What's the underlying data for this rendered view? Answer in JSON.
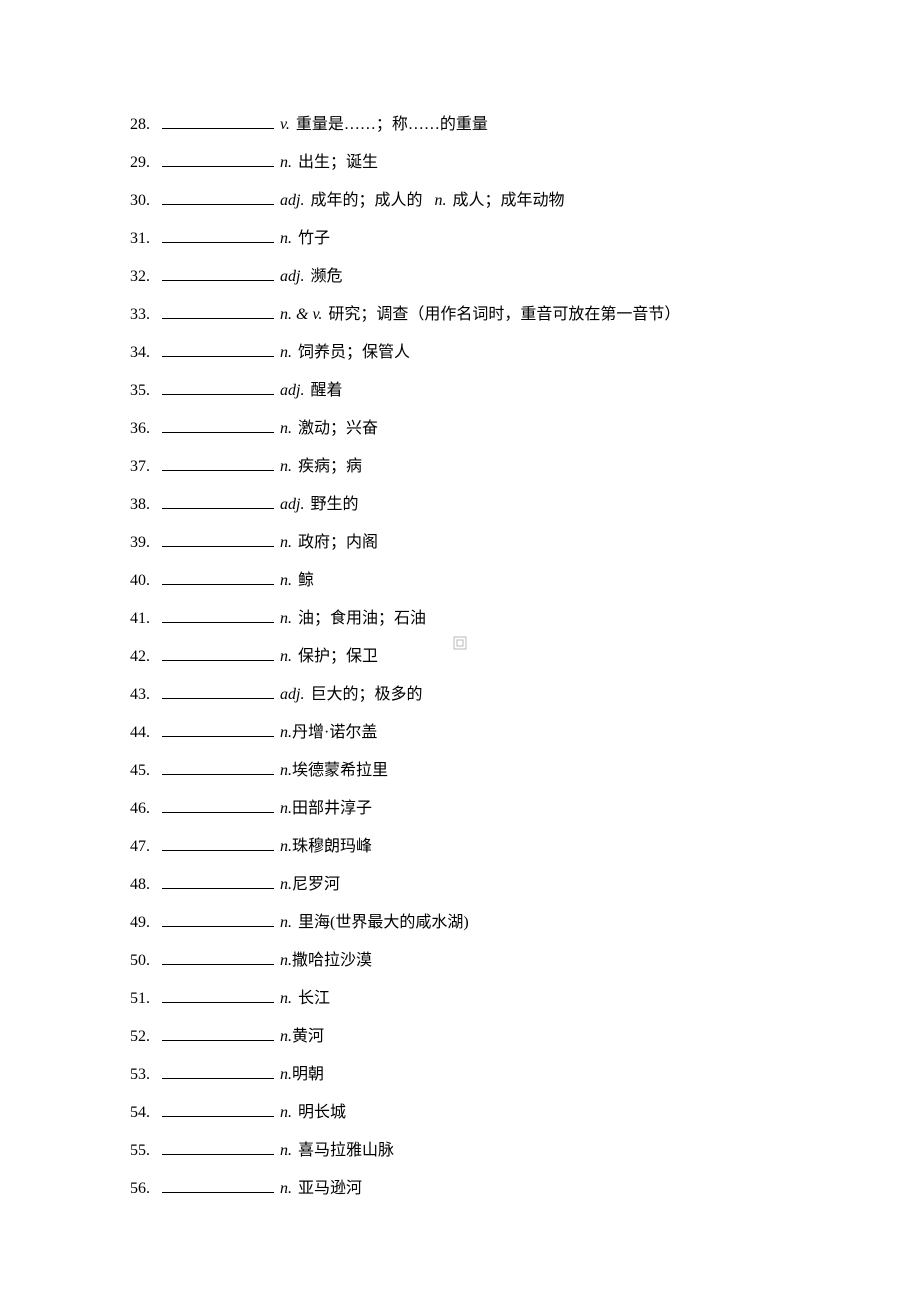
{
  "entries": [
    {
      "num": "28.",
      "defs": [
        {
          "pos": "v.",
          "text": "重量是……；称……的重量"
        }
      ]
    },
    {
      "num": "29.",
      "defs": [
        {
          "pos": "n.",
          "text": "出生；诞生"
        }
      ]
    },
    {
      "num": "30.",
      "defs": [
        {
          "pos": "adj.",
          "text": "成年的；成人的"
        },
        {
          "pos": "n.",
          "text": "成人；成年动物"
        }
      ]
    },
    {
      "num": "31.",
      "defs": [
        {
          "pos": "n.",
          "text": "竹子"
        }
      ]
    },
    {
      "num": "32.",
      "defs": [
        {
          "pos": "adj.",
          "text": "濒危"
        }
      ]
    },
    {
      "num": "33.",
      "defs": [
        {
          "pos": "n. & v.",
          "text": "  研究；调查（用作名词时，重音可放在第一音节）"
        }
      ]
    },
    {
      "num": "34.",
      "defs": [
        {
          "pos": "n.",
          "text": "饲养员；保管人"
        }
      ]
    },
    {
      "num": "35.",
      "defs": [
        {
          "pos": "adj.",
          "text": "醒着"
        }
      ]
    },
    {
      "num": "36.",
      "defs": [
        {
          "pos": "n.",
          "text": "激动；兴奋"
        }
      ]
    },
    {
      "num": "37.",
      "defs": [
        {
          "pos": "n.",
          "text": "疾病；病"
        }
      ]
    },
    {
      "num": "38.",
      "defs": [
        {
          "pos": "adj.",
          "text": "野生的"
        }
      ]
    },
    {
      "num": "39.",
      "defs": [
        {
          "pos": "n.",
          "text": "政府；内阁"
        }
      ]
    },
    {
      "num": "40.",
      "defs": [
        {
          "pos": "n.",
          "text": "鲸"
        }
      ]
    },
    {
      "num": "41.",
      "defs": [
        {
          "pos": "n.",
          "text": "油；食用油；石油"
        }
      ]
    },
    {
      "num": "42.",
      "defs": [
        {
          "pos": "n.",
          "text": "保护；保卫"
        }
      ]
    },
    {
      "num": "43.",
      "defs": [
        {
          "pos": "adj.",
          "text": "巨大的；极多的"
        }
      ]
    },
    {
      "num": "44.",
      "defs": [
        {
          "pos": "n.",
          "text": "丹增·诺尔盖",
          "tight": true
        }
      ]
    },
    {
      "num": "45.",
      "defs": [
        {
          "pos": "n.",
          "text": "埃德蒙希拉里",
          "tight": true
        }
      ]
    },
    {
      "num": "46.",
      "defs": [
        {
          "pos": "n.",
          "text": "田部井淳子",
          "tight": true
        }
      ]
    },
    {
      "num": "47.",
      "defs": [
        {
          "pos": "n.",
          "text": "珠穆朗玛峰",
          "tight": true
        }
      ]
    },
    {
      "num": "48.",
      "defs": [
        {
          "pos": "n.",
          "text": "尼罗河",
          "tight": true
        }
      ]
    },
    {
      "num": "49.",
      "defs": [
        {
          "pos": "n.",
          "text": "  里海(世界最大的咸水湖)"
        }
      ]
    },
    {
      "num": "50.",
      "defs": [
        {
          "pos": "n.",
          "text": "撒哈拉沙漠",
          "tight": true
        }
      ]
    },
    {
      "num": "51.",
      "defs": [
        {
          "pos": "n.",
          "text": "  长江"
        }
      ]
    },
    {
      "num": "52.",
      "defs": [
        {
          "pos": "n.",
          "text": "黄河",
          "tight": true
        }
      ]
    },
    {
      "num": "53.",
      "defs": [
        {
          "pos": "n.",
          "text": "明朝",
          "tight": true
        }
      ]
    },
    {
      "num": "54.",
      "defs": [
        {
          "pos": "n.",
          "text": "  明长城"
        }
      ]
    },
    {
      "num": "55.",
      "defs": [
        {
          "pos": "n.",
          "text": "  喜马拉雅山脉"
        }
      ]
    },
    {
      "num": "56.",
      "defs": [
        {
          "pos": "n.",
          "text": "  亚马逊河"
        }
      ]
    }
  ]
}
